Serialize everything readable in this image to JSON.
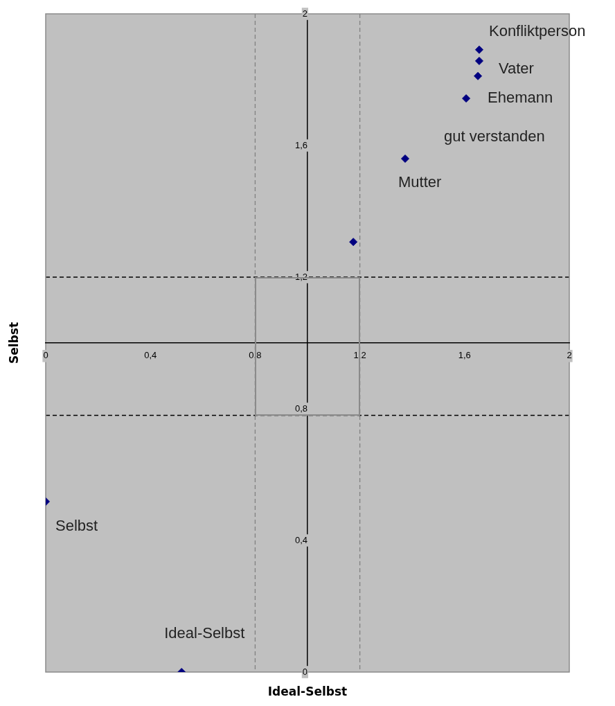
{
  "chart_data": {
    "type": "scatter",
    "xlabel": "Ideal-Selbst",
    "ylabel": "Selbst",
    "series": [
      {
        "color": "#000080",
        "x": [
          1.656,
          1.656,
          1.651,
          1.606,
          1.373,
          1.175,
          0,
          0.519
        ],
        "values": [
          1.891,
          1.857,
          1.811,
          1.743,
          1.56,
          1.307,
          0.518,
          0
        ]
      }
    ],
    "xlim": [
      0,
      2
    ],
    "ylim": [
      0,
      2
    ],
    "xticks": [
      0,
      {
        "value": 0.4,
        "label": "0,4"
      },
      {
        "value": 0.8,
        "label": "0,8"
      },
      {
        "value": 1.2,
        "label": "1,2"
      },
      {
        "value": 1.6,
        "label": "1,6"
      },
      2
    ],
    "yticks": [
      0,
      {
        "value": 0.4,
        "label": "0,4"
      },
      {
        "value": 0.8,
        "label": "0,8"
      },
      {
        "value": 1.2,
        "label": "1,2"
      },
      {
        "value": 1.6,
        "label": "1,6"
      },
      2
    ],
    "marker": "diamond",
    "grid": false,
    "legend": false,
    "ref_lines": [
      {
        "axis": "x",
        "value": 0.8,
        "color": "#808080",
        "line_style": "dashed"
      },
      {
        "axis": "x",
        "value": 1.2,
        "color": "#808080",
        "line_style": "dashed"
      },
      {
        "axis": "y",
        "value": 1.2,
        "color": "#000000",
        "line_style": "dashed"
      },
      {
        "axis": "y",
        "value": 0.78,
        "color": "#000000",
        "line_style": "dashed"
      }
    ],
    "annotations": [
      {
        "text": "Konfliktperson",
        "x": 1.656,
        "y": 1.891
      },
      {
        "text": "Vater",
        "x": 1.656,
        "y": 1.857
      },
      {
        "text": "Ehemann",
        "x": 1.651,
        "y": 1.811
      },
      {
        "text": "gut verstanden",
        "x": 1.606,
        "y": 1.743
      },
      {
        "text": "Mutter",
        "x": 1.373,
        "y": 1.56
      },
      {
        "text": "Selbst",
        "x": 0,
        "y": 0.518
      },
      {
        "text": "Ideal-Selbst",
        "x": 0.519,
        "y": 0
      }
    ]
  }
}
